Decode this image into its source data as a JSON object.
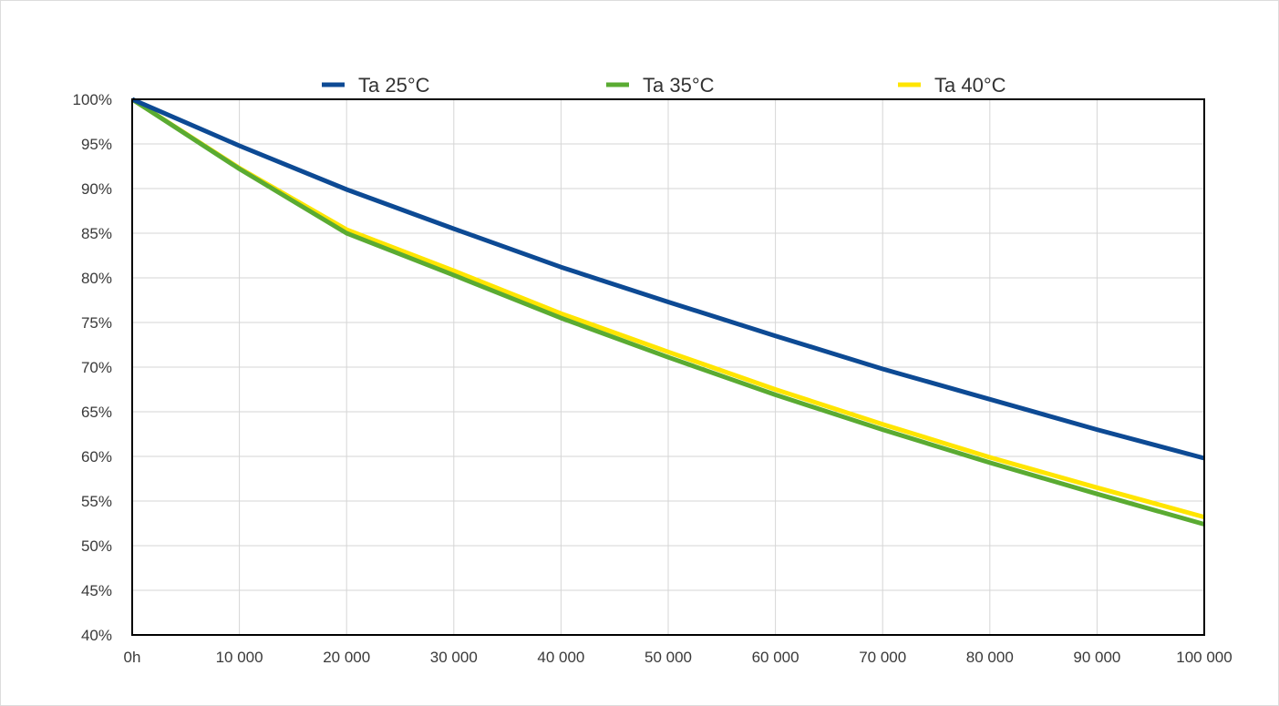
{
  "chart_data": {
    "type": "line",
    "title": "",
    "xlabel": "",
    "ylabel": "",
    "xlim": [
      0,
      100000
    ],
    "ylim": [
      40,
      100
    ],
    "grid": true,
    "legend_position": "top",
    "x_tick_labels": [
      "0h",
      "10 000",
      "20 000",
      "30 000",
      "40 000",
      "50 000",
      "60 000",
      "70 000",
      "80 000",
      "90 000",
      "100 000"
    ],
    "x_tick_values": [
      0,
      10000,
      20000,
      30000,
      40000,
      50000,
      60000,
      70000,
      80000,
      90000,
      100000
    ],
    "y_tick_labels": [
      "100%",
      "95%",
      "90%",
      "85%",
      "80%",
      "75%",
      "70%",
      "65%",
      "60%",
      "55%",
      "50%",
      "45%",
      "40%"
    ],
    "y_tick_values": [
      100,
      95,
      90,
      85,
      80,
      75,
      70,
      65,
      60,
      55,
      50,
      45,
      40
    ],
    "series": [
      {
        "name": "Ta 25°C",
        "color": "#0d4a94",
        "x": [
          0,
          10000,
          20000,
          30000,
          40000,
          50000,
          60000,
          70000,
          80000,
          90000,
          100000
        ],
        "y": [
          100,
          94.8,
          89.9,
          85.5,
          81.2,
          77.3,
          73.5,
          69.8,
          66.4,
          63.0,
          59.8
        ]
      },
      {
        "name": "Ta 35°C",
        "color": "#5aab32",
        "x": [
          0,
          10000,
          20000,
          30000,
          40000,
          50000,
          60000,
          70000,
          80000,
          90000,
          100000
        ],
        "y": [
          100,
          92.2,
          85.0,
          80.3,
          75.5,
          71.1,
          66.9,
          63.0,
          59.3,
          55.8,
          52.4
        ]
      },
      {
        "name": "Ta 40°C",
        "color": "#ffe500",
        "x": [
          0,
          10000,
          20000,
          30000,
          40000,
          50000,
          60000,
          70000,
          80000,
          90000,
          100000
        ],
        "y": [
          100,
          92.3,
          85.4,
          80.8,
          76.0,
          71.7,
          67.5,
          63.6,
          59.9,
          56.5,
          53.2
        ]
      }
    ]
  }
}
